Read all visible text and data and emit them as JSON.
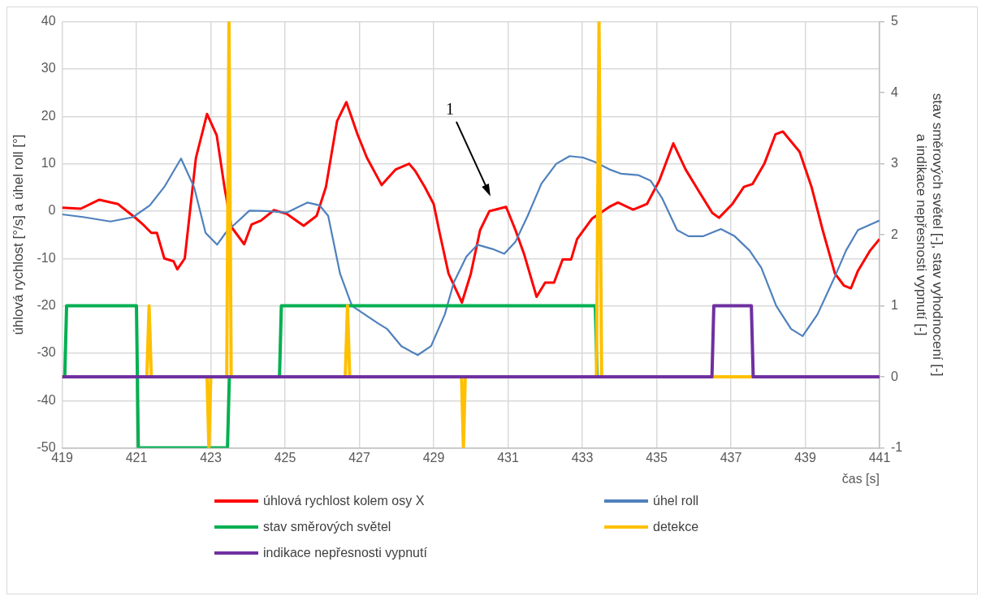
{
  "chart_data": {
    "type": "line",
    "xlabel": "čas [s]",
    "ylabel": "úhlová rychlost [°/s] a úhel roll [°]",
    "y2label": "stav směrových světel [-], stav vyhodnocení [-]\na indikace nepřesnosti vypnutí [-]",
    "xlim": [
      419,
      441
    ],
    "xticks": [
      419,
      421,
      423,
      425,
      427,
      429,
      431,
      433,
      435,
      437,
      439,
      441
    ],
    "ylim": [
      -50,
      40
    ],
    "yticks": [
      -50,
      -40,
      -30,
      -20,
      -10,
      0,
      10,
      20,
      30,
      40
    ],
    "y2lim": [
      -1,
      5
    ],
    "y2ticks": [
      -1,
      0,
      1,
      2,
      3,
      4,
      5
    ],
    "grid": true,
    "legend": "bottom",
    "marker": "none",
    "line_style": "solid",
    "annotations": [
      "1"
    ],
    "series": [
      {
        "name": "úhlová rychlost kolem osy X",
        "color": "#ff0000",
        "x": [
          419,
          419.5,
          420,
          420.5,
          421,
          421.2,
          421.4,
          421.55,
          421.75,
          422,
          422.1,
          422.3,
          422.6,
          422.9,
          423.16,
          423.37,
          423.56,
          423.9,
          424.1,
          424.35,
          424.7,
          425.05,
          425.5,
          425.85,
          426.1,
          426.4,
          426.65,
          426.95,
          427.2,
          427.6,
          427.98,
          428.34,
          428.5,
          428.76,
          429,
          429.16,
          429.4,
          429.76,
          430,
          430.25,
          430.5,
          430.95,
          431.2,
          431.43,
          431.77,
          432,
          432.24,
          432.47,
          432.7,
          432.86,
          433.26,
          433.73,
          433.96,
          434.37,
          434.74,
          435.07,
          435.45,
          435.78,
          436.16,
          436.5,
          436.68,
          437.04,
          437.35,
          437.58,
          437.9,
          438.2,
          438.4,
          438.85,
          439.17,
          439.47,
          439.8,
          440.04,
          440.23,
          440.42,
          440.75,
          441
        ],
        "values": [
          0.7,
          0.5,
          2.4,
          1.5,
          -1.6,
          -3,
          -4.6,
          -4.6,
          -10,
          -10.6,
          -12.3,
          -10,
          11.2,
          20.5,
          16,
          5,
          -3.4,
          -7,
          -2.8,
          -2,
          0.2,
          -0.6,
          -3.1,
          -1,
          5.1,
          19,
          23,
          16.2,
          11.3,
          5.5,
          8.8,
          10,
          8.5,
          5.1,
          1.5,
          -4.6,
          -13.2,
          -19.3,
          -13.2,
          -4,
          0,
          0.9,
          -4,
          -9,
          -18.1,
          -15.1,
          -15.1,
          -10.2,
          -10.2,
          -5.9,
          -1.6,
          0.9,
          1.8,
          0.3,
          1.5,
          6.4,
          14.3,
          8.8,
          3.9,
          -0.4,
          -1.4,
          1.5,
          5.1,
          5.7,
          10,
          16.2,
          16.8,
          12.5,
          5.1,
          -4,
          -13.2,
          -15.7,
          -16.3,
          -12.6,
          -8.3,
          -5.9
        ]
      },
      {
        "name": "úhel roll",
        "color": "#4f81bd",
        "x": [
          419,
          419.6,
          420.3,
          420.9,
          421.36,
          421.75,
          422.2,
          422.55,
          422.86,
          423.17,
          423.4,
          423.56,
          424.04,
          424.5,
          425.05,
          425.6,
          425.93,
          426.16,
          426.48,
          426.8,
          427.5,
          427.75,
          428.13,
          428.57,
          428.93,
          429.3,
          429.54,
          429.88,
          430.18,
          430.58,
          430.9,
          431.2,
          431.53,
          431.9,
          432.3,
          432.66,
          433.02,
          433.33,
          433.73,
          434.04,
          434.5,
          434.84,
          435.15,
          435.55,
          435.86,
          436.26,
          436.73,
          437.1,
          437.5,
          437.82,
          438.22,
          438.62,
          438.93,
          439.33,
          439.8,
          440.1,
          440.42,
          441
        ],
        "values": [
          -0.7,
          -1.3,
          -2.2,
          -1.3,
          1.2,
          5.1,
          11.1,
          5.1,
          -4.6,
          -7.1,
          -4.6,
          -3.4,
          0.1,
          0,
          -0.3,
          1.8,
          1.2,
          -1,
          -13.2,
          -20,
          -23.7,
          -24.9,
          -28.5,
          -30.4,
          -28.5,
          -21.8,
          -15.1,
          -9.6,
          -7.1,
          -8,
          -9,
          -6.5,
          -1,
          5.8,
          10,
          11.6,
          11.3,
          10.4,
          8.8,
          7.9,
          7.6,
          6.4,
          2.7,
          -4,
          -5.3,
          -5.3,
          -3.8,
          -5.3,
          -8.3,
          -12,
          -20,
          -24.9,
          -26.4,
          -21.8,
          -13.8,
          -8.3,
          -4,
          -2
        ]
      },
      {
        "name": "stav směrových světel",
        "color": "#00b050",
        "axis": "y2",
        "x": [
          419,
          419.07,
          419.12,
          421,
          421.05,
          423.45,
          423.5,
          424.85,
          424.9,
          433.35,
          433.4,
          441
        ],
        "values": [
          0,
          0,
          1,
          1,
          -1,
          -1,
          0,
          0,
          1,
          1,
          0,
          0
        ]
      },
      {
        "name": "detekce",
        "color": "#ffc000",
        "axis": "y2",
        "x": [
          419,
          421.28,
          421.34,
          421.4,
          422.9,
          422.95,
          423.0,
          423.43,
          423.49,
          423.55,
          426.62,
          426.68,
          426.74,
          429.75,
          429.8,
          429.85,
          433.38,
          433.45,
          433.52,
          441
        ],
        "values": [
          0,
          0,
          1,
          0,
          0,
          -1,
          0,
          0,
          5,
          0,
          0,
          1,
          0,
          0,
          -1,
          0,
          0,
          5,
          0,
          0
        ]
      },
      {
        "name": "indikace nepřesnosti vypnutí",
        "color": "#7030a0",
        "axis": "y2",
        "x": [
          419,
          436.49,
          436.54,
          437.55,
          437.6,
          441
        ],
        "values": [
          0,
          0,
          1,
          1,
          0,
          0
        ]
      }
    ]
  }
}
